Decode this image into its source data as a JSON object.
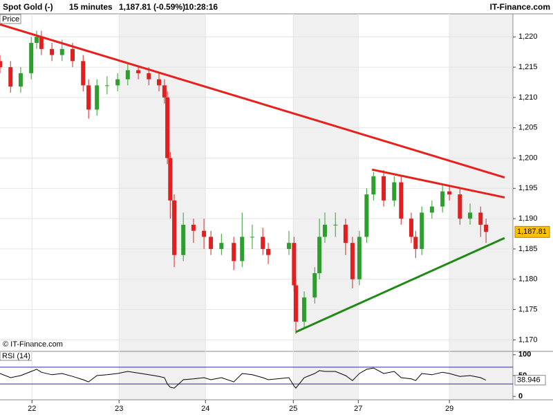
{
  "chart_data": {
    "type": "candlestick",
    "title": "Spot Gold (-)",
    "interval": "15 minutes",
    "last_quote": "1,187.81 (-0.59%)",
    "time": "10:28:16",
    "source": "IT-Finance.com",
    "panel_label": "Price",
    "watermark": "© IT-Finance.com",
    "up_color": "#2e9e2e",
    "down_color": "#e02020",
    "x": [
      0,
      2.9,
      5.7,
      8.6,
      10.1,
      11.4,
      14.3,
      17.1,
      20,
      22.9,
      24.4,
      26.7,
      29.5,
      32.4,
      35.2,
      38.1,
      41,
      43.8,
      45.3,
      46.1,
      46.9,
      48,
      50.5,
      53.3,
      56.2,
      58.1,
      61,
      64.4,
      66.7,
      69.5,
      72.4,
      73.9,
      79.6,
      81,
      81.5,
      83.8,
      86.7,
      88,
      89.5,
      92.4,
      95.2,
      97.1,
      99,
      101,
      102.9,
      105.7,
      108.6,
      110.5,
      113.3,
      114.5,
      116.2,
      119,
      121.9,
      123.8,
      126.7,
      129.5,
      132.4,
      133.9
    ],
    "open": [
      1216,
      1215,
      1211.8,
      1214,
      1219,
      1220,
      1218,
      1217,
      1218,
      1216,
      1212,
      1208,
      1212,
      1212,
      1213,
      1214.5,
      1214,
      1213,
      1212,
      1210,
      1200,
      1193,
      1184,
      1189,
      1188,
      1187,
      1185,
      1186,
      1183,
      1187,
      1187,
      1185,
      1185,
      1186,
      1179,
      1173,
      1177,
      1181,
      1187,
      1189,
      1189,
      1186,
      1180,
      1187,
      1194,
      1197,
      1193,
      1196,
      1190,
      1187,
      1185,
      1191,
      1192,
      1194.5,
      1194,
      1190,
      1191,
      1189
    ],
    "high": [
      1217,
      1216,
      1215,
      1220,
      1221,
      1221,
      1219,
      1219.5,
      1219,
      1217,
      1213,
      1213,
      1213.5,
      1214,
      1215.5,
      1215,
      1215,
      1214,
      1213,
      1211,
      1201,
      1194,
      1191,
      1190,
      1190,
      1188,
      1187.5,
      1187,
      1191,
      1189,
      1188.5,
      1186,
      1188,
      1187,
      1180,
      1178,
      1182,
      1190,
      1191,
      1191,
      1190,
      1187,
      1188,
      1195,
      1197.7,
      1198,
      1197,
      1197,
      1191,
      1188,
      1192,
      1193,
      1195.5,
      1195.5,
      1195,
      1192.5,
      1192,
      1190
    ],
    "low": [
      1214,
      1210.8,
      1210.8,
      1213,
      1218,
      1217,
      1216,
      1216,
      1215,
      1211,
      1206.5,
      1207,
      1210.5,
      1211,
      1212,
      1213,
      1212,
      1211,
      1209,
      1199,
      1190,
      1182,
      1183,
      1186,
      1185,
      1184,
      1184,
      1181.5,
      1182,
      1185,
      1184,
      1182.5,
      1184,
      1178,
      1171,
      1172,
      1176,
      1180,
      1186,
      1187,
      1184,
      1178.5,
      1179,
      1186,
      1193,
      1192,
      1192,
      1189,
      1186,
      1183.5,
      1184,
      1190,
      1191,
      1193,
      1189,
      1189,
      1187,
      1186
    ],
    "close": [
      1215,
      1211.8,
      1214,
      1219,
      1220,
      1218,
      1217,
      1218,
      1216,
      1212,
      1208,
      1212,
      1212,
      1213,
      1214.5,
      1214,
      1213,
      1212,
      1210,
      1200,
      1193,
      1184,
      1189,
      1188,
      1187,
      1185,
      1186,
      1183,
      1187,
      1187,
      1185,
      1184,
      1186,
      1179,
      1173,
      1177,
      1181,
      1187,
      1189,
      1189,
      1186,
      1180,
      1187,
      1194,
      1197,
      1193,
      1196,
      1190,
      1187,
      1185,
      1191,
      1192,
      1194.5,
      1194,
      1190,
      1191,
      1189,
      1187.81
    ],
    "last_price": {
      "value": 1187.81,
      "label": "1,187.81"
    },
    "xlim": [
      0,
      141.3
    ],
    "xticks": [
      {
        "value": 8.8,
        "label": "22"
      },
      {
        "value": 32.8,
        "label": "23"
      },
      {
        "value": 56.6,
        "label": "24"
      },
      {
        "value": 80.8,
        "label": "25"
      },
      {
        "value": 98.7,
        "label": "27"
      },
      {
        "value": 123.8,
        "label": "29"
      }
    ],
    "ylim": [
      1168.1,
      1223.8
    ],
    "yticks": [
      {
        "value": 1170,
        "label": "1,170"
      },
      {
        "value": 1175,
        "label": "1,175"
      },
      {
        "value": 1180,
        "label": "1,180"
      },
      {
        "value": 1185,
        "label": "1,185"
      },
      {
        "value": 1190,
        "label": "1,190"
      },
      {
        "value": 1195,
        "label": "1,195"
      },
      {
        "value": 1200,
        "label": "1,200"
      },
      {
        "value": 1205,
        "label": "1,205"
      },
      {
        "value": 1210,
        "label": "1,210"
      },
      {
        "value": 1215,
        "label": "1,215"
      },
      {
        "value": 1220,
        "label": "1,220"
      }
    ],
    "trendlines": [
      {
        "color": "#e8201c",
        "x": [
          0,
          139
        ],
        "values": [
          1222.05,
          1196.8
        ]
      },
      {
        "color": "#e8201c",
        "x": [
          102.5,
          139
        ],
        "values": [
          1198.1,
          1193.5
        ]
      },
      {
        "color": "#1e8a14",
        "x": [
          81.5,
          139
        ],
        "values": [
          1171.3,
          1186.8
        ]
      }
    ],
    "rsi": {
      "name": "RSI (14)",
      "values": [
        55,
        45,
        50,
        60,
        65,
        58,
        52,
        55,
        48,
        40,
        35,
        50,
        52,
        55,
        60,
        56,
        52,
        48,
        45,
        30,
        22,
        20,
        40,
        42,
        45,
        40,
        45,
        35,
        55,
        52,
        45,
        40,
        45,
        25,
        20,
        45,
        55,
        62,
        60,
        60,
        50,
        38,
        55,
        65,
        68,
        55,
        60,
        45,
        42,
        38,
        55,
        52,
        58,
        55,
        48,
        50,
        45,
        38.946
      ],
      "ylim": [
        -8,
        108
      ],
      "yticks": [
        0,
        50,
        100
      ],
      "levels": [
        30,
        70
      ],
      "level_color": "#2a2aa0"
    }
  }
}
